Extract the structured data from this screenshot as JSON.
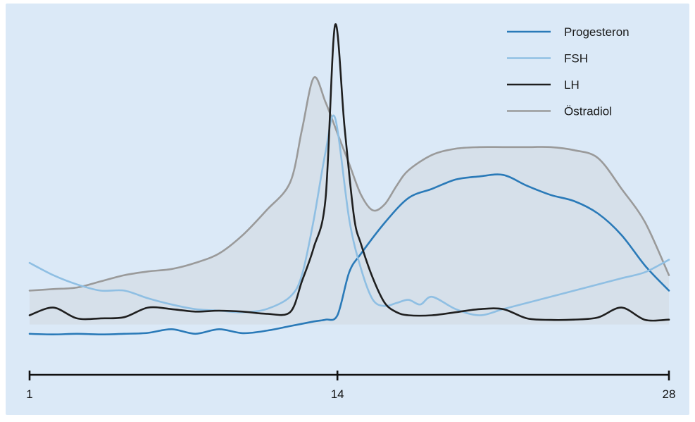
{
  "colors": {
    "panel": "#dbe9f7",
    "fill": "#d6e0ea",
    "progesteron": "#2a7ab8",
    "fsh": "#8fbfe3",
    "lh": "#1f1f1f",
    "oestradiol": "#9a9a9a",
    "axis": "#111111"
  },
  "chart_data": {
    "type": "line",
    "title": "",
    "xlabel": "",
    "ylabel": "",
    "xlim": [
      1,
      28
    ],
    "ylim": [
      0,
      100
    ],
    "grid": false,
    "legend_position": "top-right",
    "ticks": [
      "1",
      "14",
      "28"
    ],
    "shaded_series": "Östradiol",
    "series": [
      {
        "name": "Progesteron",
        "color_key": "progesteron",
        "x": [
          1,
          2,
          3,
          4,
          5,
          6,
          7,
          8,
          9,
          10,
          11,
          12,
          13,
          13.5,
          14,
          14.5,
          15,
          16,
          17,
          18,
          19,
          20,
          21,
          22,
          23,
          24,
          25,
          26,
          27,
          28
        ],
        "y": [
          11,
          10.8,
          11,
          10.8,
          11,
          11.3,
          12.5,
          11,
          12.5,
          11.2,
          12,
          13.5,
          15,
          15.6,
          17,
          31,
          37,
          47,
          55,
          58,
          61,
          62,
          62.5,
          59,
          56,
          54,
          50,
          43,
          33,
          25
        ]
      },
      {
        "name": "FSH",
        "color_key": "fsh",
        "x": [
          1,
          2,
          3,
          4,
          5,
          6,
          7,
          8,
          9,
          10,
          11,
          12,
          12.5,
          13,
          13.5,
          13.9,
          14.5,
          15,
          15.5,
          16,
          16.5,
          17,
          17.5,
          18,
          19,
          20,
          21,
          22,
          23,
          24,
          25,
          26,
          27,
          28
        ],
        "y": [
          34,
          30,
          27,
          25,
          25,
          22.5,
          20.5,
          19,
          18.5,
          18,
          19,
          23,
          30,
          48,
          70,
          81,
          48,
          32,
          22,
          20,
          21,
          22,
          20.5,
          23,
          19,
          17,
          19,
          21,
          23,
          25,
          27,
          29,
          31,
          35
        ]
      },
      {
        "name": "LH",
        "color_key": "lh",
        "x": [
          1,
          2,
          3,
          4,
          5,
          6,
          7,
          8,
          9,
          10,
          11,
          12,
          12.5,
          13,
          13.5,
          13.9,
          14.3,
          14.7,
          15,
          15.5,
          16,
          16.5,
          17,
          18,
          19,
          20,
          21,
          22,
          23,
          24,
          25,
          26,
          27,
          28
        ],
        "y": [
          17,
          19.5,
          16,
          16,
          16.4,
          19.5,
          19,
          18.2,
          18.5,
          18.2,
          17.5,
          18,
          28,
          39,
          55,
          111,
          78,
          49,
          40,
          29,
          21,
          18,
          17,
          17,
          18,
          19,
          19,
          16,
          15.5,
          15.6,
          16.3,
          19.5,
          15.5,
          15.6
        ]
      },
      {
        "name": "Östradiol",
        "color_key": "oestradiol",
        "x": [
          1,
          2,
          3,
          4,
          5,
          6,
          7,
          8,
          9,
          10,
          11,
          12,
          12.5,
          13,
          13.5,
          14,
          14.5,
          15,
          15.5,
          16,
          16.5,
          17,
          18,
          19,
          20,
          21,
          22,
          23,
          24,
          25,
          26,
          27,
          28
        ],
        "y": [
          25,
          25.5,
          26,
          28,
          30,
          31.2,
          32,
          34,
          37,
          43,
          51,
          60,
          77,
          94,
          86,
          76,
          66,
          56,
          51,
          53,
          59,
          64,
          69,
          71,
          71.5,
          71.5,
          71.5,
          71.5,
          70.5,
          68,
          58,
          47,
          30
        ]
      }
    ]
  }
}
